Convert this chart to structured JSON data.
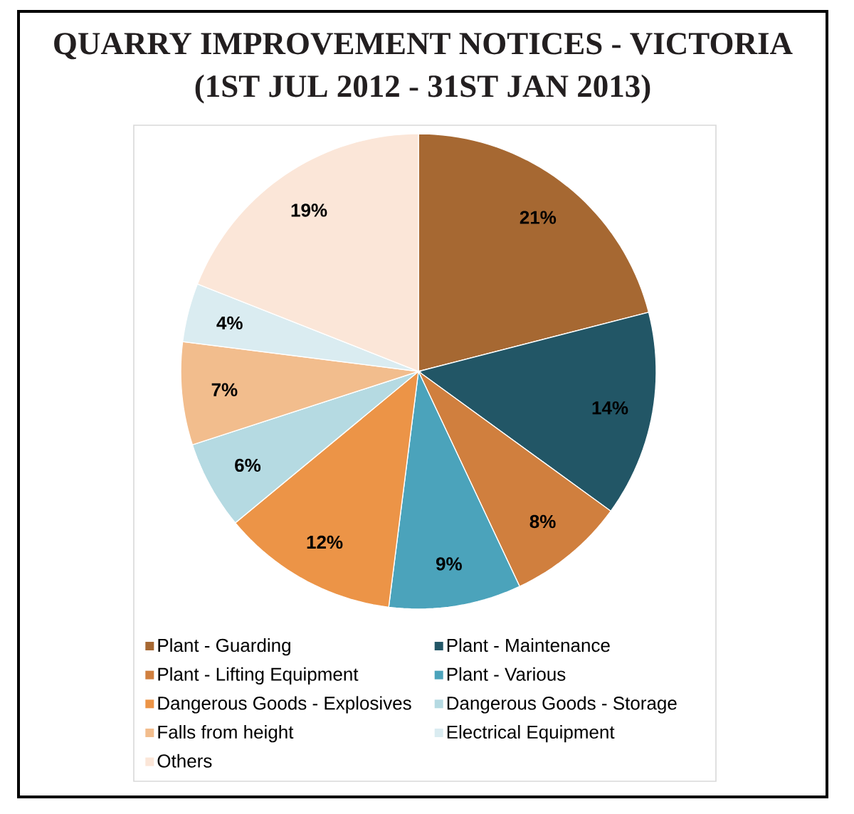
{
  "chart_data": {
    "type": "pie",
    "title": "QUARRY IMPROVEMENT NOTICES - VICTORIA",
    "subtitle": "(1ST JUL 2012 - 31ST JAN 2013)",
    "categories": [
      "Plant - Guarding",
      "Plant - Maintenance",
      "Plant - Lifting Equipment",
      "Plant - Various",
      "Dangerous Goods - Explosives",
      "Dangerous Goods - Storage",
      "Falls from height",
      "Electrical Equipment",
      "Others"
    ],
    "values": [
      21,
      14,
      8,
      9,
      12,
      6,
      7,
      4,
      19
    ],
    "colors": [
      "#a66832",
      "#225666",
      "#d07f3e",
      "#4ba3bb",
      "#ec9447",
      "#b5dae2",
      "#f2bd8d",
      "#daecf1",
      "#fbe6d8"
    ],
    "value_labels": [
      "21%",
      "14%",
      "8%",
      "9%",
      "12%",
      "6%",
      "7%",
      "4%",
      "19%"
    ],
    "legend": "bottom"
  }
}
